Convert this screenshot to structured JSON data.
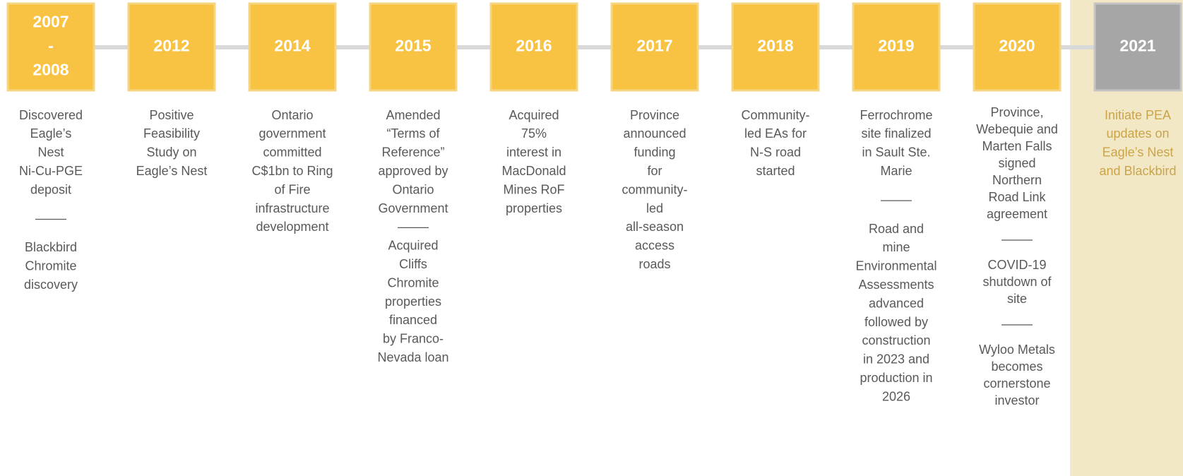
{
  "timeline": {
    "items": [
      {
        "year_lines": [
          "2007",
          "-",
          "2008"
        ],
        "paragraphs": [
          [
            "Discovered",
            "Eagle’s",
            "Nest",
            "Ni-Cu-PGE",
            "deposit"
          ],
          [
            "Blackbird",
            "Chromite",
            "discovery"
          ]
        ]
      },
      {
        "year_lines": [
          "2012"
        ],
        "paragraphs": [
          [
            "Positive",
            "Feasibility",
            "Study on",
            "Eagle’s Nest"
          ]
        ]
      },
      {
        "year_lines": [
          "2014"
        ],
        "paragraphs": [
          [
            "Ontario",
            "government",
            "committed",
            "C$1bn to Ring",
            "of Fire",
            "infrastructure",
            "development"
          ]
        ]
      },
      {
        "year_lines": [
          "2015"
        ],
        "paragraphs": [
          [
            "Amended",
            "“Terms of",
            "Reference”",
            "approved by",
            "Ontario",
            "Government"
          ],
          [
            "Acquired",
            "Cliffs",
            "Chromite",
            "properties",
            "financed",
            "by Franco-",
            "Nevada loan"
          ]
        ]
      },
      {
        "year_lines": [
          "2016"
        ],
        "paragraphs": [
          [
            "Acquired",
            "75%",
            "interest in",
            "MacDonald",
            "Mines RoF",
            "properties"
          ]
        ]
      },
      {
        "year_lines": [
          "2017"
        ],
        "paragraphs": [
          [
            "Province",
            "announced",
            "funding",
            "for",
            "community-",
            "led",
            "all-season",
            "access",
            "roads"
          ]
        ]
      },
      {
        "year_lines": [
          "2018"
        ],
        "paragraphs": [
          [
            "Community-",
            "led EAs for",
            "N-S road",
            "started"
          ]
        ]
      },
      {
        "year_lines": [
          "2019"
        ],
        "paragraphs": [
          [
            "Ferrochrome",
            "site finalized",
            "in Sault Ste.",
            "Marie"
          ],
          [
            "Road and",
            "mine",
            "Environmental",
            "Assessments",
            "advanced",
            "followed by",
            "construction",
            "in 2023 and",
            "production in",
            "2026"
          ]
        ]
      },
      {
        "year_lines": [
          "2020"
        ],
        "paragraphs": [
          [
            "Province,",
            "Webequie and",
            "Marten Falls",
            "signed",
            "Northern",
            "Road Link",
            "agreement"
          ],
          [
            "COVID-19",
            "shutdown of",
            "site"
          ],
          [
            "Wyloo Metals",
            "becomes",
            "cornerstone",
            "investor"
          ]
        ]
      },
      {
        "year_lines": [
          "2021"
        ],
        "paragraphs": [
          [
            "Initiate PEA",
            "updates on",
            "Eagle’s Nest",
            "and Blackbird"
          ]
        ]
      }
    ]
  }
}
